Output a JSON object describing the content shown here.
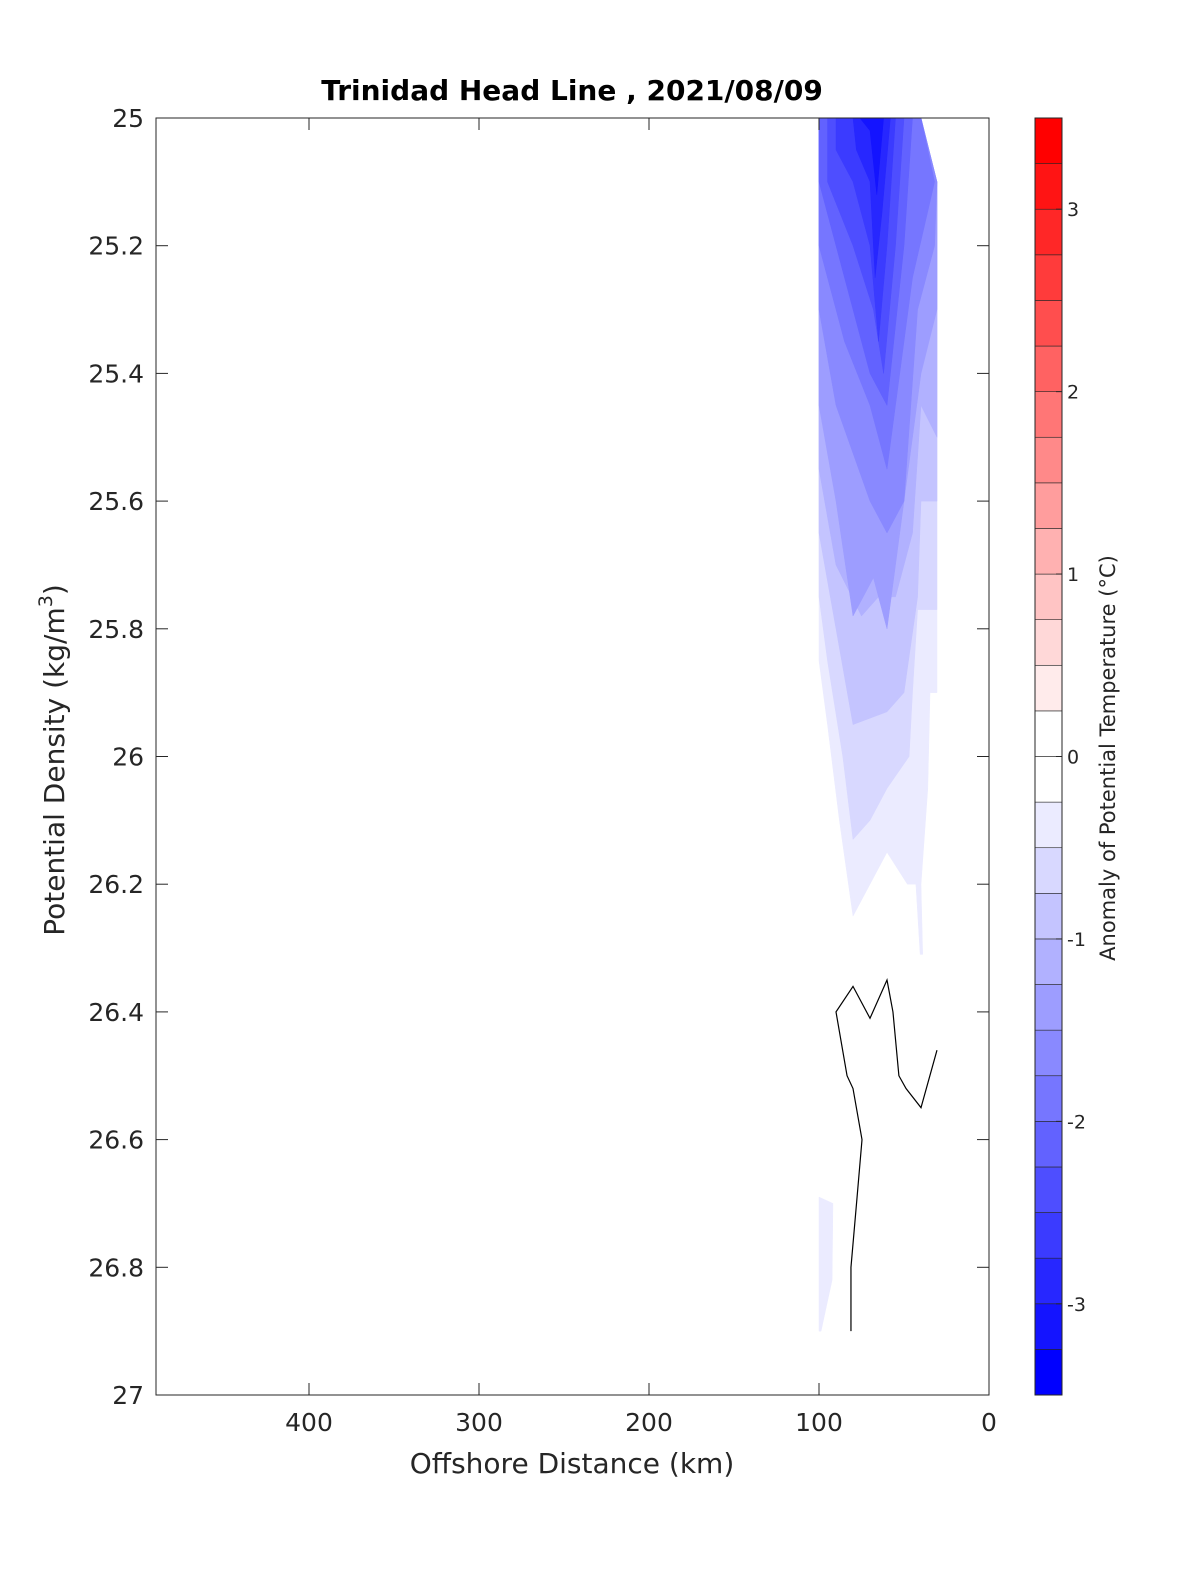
{
  "chart_data": {
    "type": "filled-contour",
    "title": "Trinidad Head Line , 2021/08/09",
    "xlabel": "Offshore Distance (km)",
    "ylabel": "Potential Density (kg/m",
    "ylabel_superscript": "3",
    "ylabel_suffix": ")",
    "xlim": [
      490,
      0
    ],
    "x_reversed": true,
    "ylim": [
      25,
      27
    ],
    "y_reversed": true,
    "xticks": [
      400,
      300,
      200,
      100,
      0
    ],
    "yticks": [
      "25",
      "25.2",
      "25.4",
      "25.6",
      "25.8",
      "26",
      "26.2",
      "26.4",
      "26.6",
      "26.8",
      "27"
    ],
    "grid": false,
    "colorbar": {
      "label": "Anomaly of Potential Temperature (°C)",
      "range": [
        -3.5,
        3.5
      ],
      "step": 0.25,
      "ticks": [
        "-3",
        "-2",
        "-1",
        "0",
        "1",
        "2",
        "3"
      ],
      "position": "right",
      "low_color": "#0000ff",
      "mid_color": "#ffffff",
      "high_color": "#ff0000"
    },
    "contours": [
      {
        "level": -0.25,
        "polygons": [
          [
            [
              100,
              25
            ],
            [
              40,
              25
            ],
            [
              30.6,
              25.1
            ],
            [
              30.6,
              25.9
            ],
            [
              34.7,
              25.9
            ],
            [
              36,
              26.05
            ],
            [
              40,
              26.2
            ],
            [
              39,
              26.31
            ],
            [
              40.5,
              26.31
            ],
            [
              43,
              26.2
            ],
            [
              48,
              26.2
            ],
            [
              60,
              26.15
            ],
            [
              80,
              26.25
            ],
            [
              88,
              26.1
            ],
            [
              95,
              25.95
            ],
            [
              100,
              25.85
            ]
          ],
          [
            [
              100,
              26.69
            ],
            [
              91.8,
              26.7
            ],
            [
              92.3,
              26.82
            ],
            [
              98.8,
              26.9
            ],
            [
              100,
              26.9
            ]
          ]
        ]
      },
      {
        "level": -0.5,
        "polygons": [
          [
            [
              100,
              25
            ],
            [
              40,
              25
            ],
            [
              30.6,
              25.1
            ],
            [
              30.6,
              25.77
            ],
            [
              42,
              25.77
            ],
            [
              45,
              25.9
            ],
            [
              47,
              26.0
            ],
            [
              60,
              26.05
            ],
            [
              70,
              26.1
            ],
            [
              80,
              26.13
            ],
            [
              86,
              26.0
            ],
            [
              95,
              25.85
            ],
            [
              100,
              25.75
            ]
          ]
        ]
      },
      {
        "level": -0.75,
        "polygons": [
          [
            [
              100,
              25
            ],
            [
              40,
              25
            ],
            [
              30.6,
              25.1
            ],
            [
              30.6,
              25.6
            ],
            [
              40,
              25.6
            ],
            [
              42,
              25.75
            ],
            [
              50,
              25.9
            ],
            [
              60,
              25.93
            ],
            [
              80,
              25.95
            ],
            [
              90,
              25.8
            ],
            [
              100,
              25.65
            ]
          ]
        ]
      },
      {
        "level": -1.0,
        "polygons": [
          [
            [
              100,
              25
            ],
            [
              40,
              25
            ],
            [
              30.6,
              25.1
            ],
            [
              30.6,
              25.5
            ],
            [
              40,
              25.45
            ],
            [
              45,
              25.65
            ],
            [
              55,
              25.75
            ],
            [
              65,
              25.75
            ],
            [
              75,
              25.78
            ],
            [
              90,
              25.7
            ],
            [
              100,
              25.55
            ]
          ]
        ]
      },
      {
        "level": -1.25,
        "polygons": [
          [
            [
              100,
              25
            ],
            [
              40,
              25
            ],
            [
              30.6,
              25.1
            ],
            [
              30.6,
              25.3
            ],
            [
              40,
              25.4
            ],
            [
              45,
              25.5
            ],
            [
              55,
              25.7
            ],
            [
              60,
              25.8
            ],
            [
              68,
              25.72
            ],
            [
              80,
              25.78
            ],
            [
              90,
              25.6
            ],
            [
              100,
              25.45
            ]
          ]
        ]
      },
      {
        "level": -1.5,
        "polygons": [
          [
            [
              100,
              25
            ],
            [
              40,
              25
            ],
            [
              30.6,
              25.1
            ],
            [
              32,
              25.2
            ],
            [
              42,
              25.3
            ],
            [
              50,
              25.6
            ],
            [
              60,
              25.65
            ],
            [
              70,
              25.6
            ],
            [
              90,
              25.45
            ],
            [
              100,
              25.3
            ]
          ]
        ]
      },
      {
        "level": -1.75,
        "polygons": [
          [
            [
              100,
              25
            ],
            [
              40,
              25
            ],
            [
              32,
              25.1
            ],
            [
              45,
              25.25
            ],
            [
              55,
              25.45
            ],
            [
              60,
              25.55
            ],
            [
              70,
              25.45
            ],
            [
              85,
              25.35
            ],
            [
              100,
              25.2
            ]
          ]
        ]
      },
      {
        "level": -2.0,
        "polygons": [
          [
            [
              100,
              25
            ],
            [
              45,
              25
            ],
            [
              50,
              25.2
            ],
            [
              60,
              25.45
            ],
            [
              70,
              25.4
            ],
            [
              85,
              25.25
            ],
            [
              100,
              25.1
            ]
          ]
        ]
      },
      {
        "level": -2.25,
        "polygons": [
          [
            [
              95,
              25
            ],
            [
              50,
              25
            ],
            [
              55,
              25.2
            ],
            [
              62,
              25.4
            ],
            [
              68,
              25.3
            ],
            [
              80,
              25.2
            ],
            [
              95,
              25.1
            ]
          ]
        ]
      },
      {
        "level": -2.5,
        "polygons": [
          [
            [
              90,
              25
            ],
            [
              55,
              25
            ],
            [
              60,
              25.2
            ],
            [
              65,
              25.35
            ],
            [
              70,
              25.2
            ],
            [
              80,
              25.1
            ],
            [
              90,
              25.05
            ]
          ]
        ]
      },
      {
        "level": -2.75,
        "polygons": [
          [
            [
              80,
              25
            ],
            [
              58,
              25
            ],
            [
              63,
              25.15
            ],
            [
              67,
              25.25
            ],
            [
              70,
              25.1
            ],
            [
              78,
              25.05
            ]
          ]
        ]
      },
      {
        "level": -3.0,
        "polygons": [
          [
            [
              76,
              25
            ],
            [
              62,
              25
            ],
            [
              66,
              25.12
            ],
            [
              70,
              25.02
            ]
          ]
        ]
      }
    ],
    "zero_contour_line": [
      [
        81.2,
        26.9
      ],
      [
        81.2,
        26.8
      ],
      [
        77.6,
        26.69
      ],
      [
        74.7,
        26.6
      ],
      [
        80,
        26.52
      ],
      [
        83.5,
        26.5
      ],
      [
        90,
        26.4
      ],
      [
        80,
        26.36
      ],
      [
        70,
        26.41
      ],
      [
        60,
        26.35
      ],
      [
        56.5,
        26.4
      ],
      [
        53,
        26.5
      ],
      [
        48.8,
        26.52
      ],
      [
        40,
        26.55
      ],
      [
        30.6,
        26.46
      ]
    ]
  }
}
